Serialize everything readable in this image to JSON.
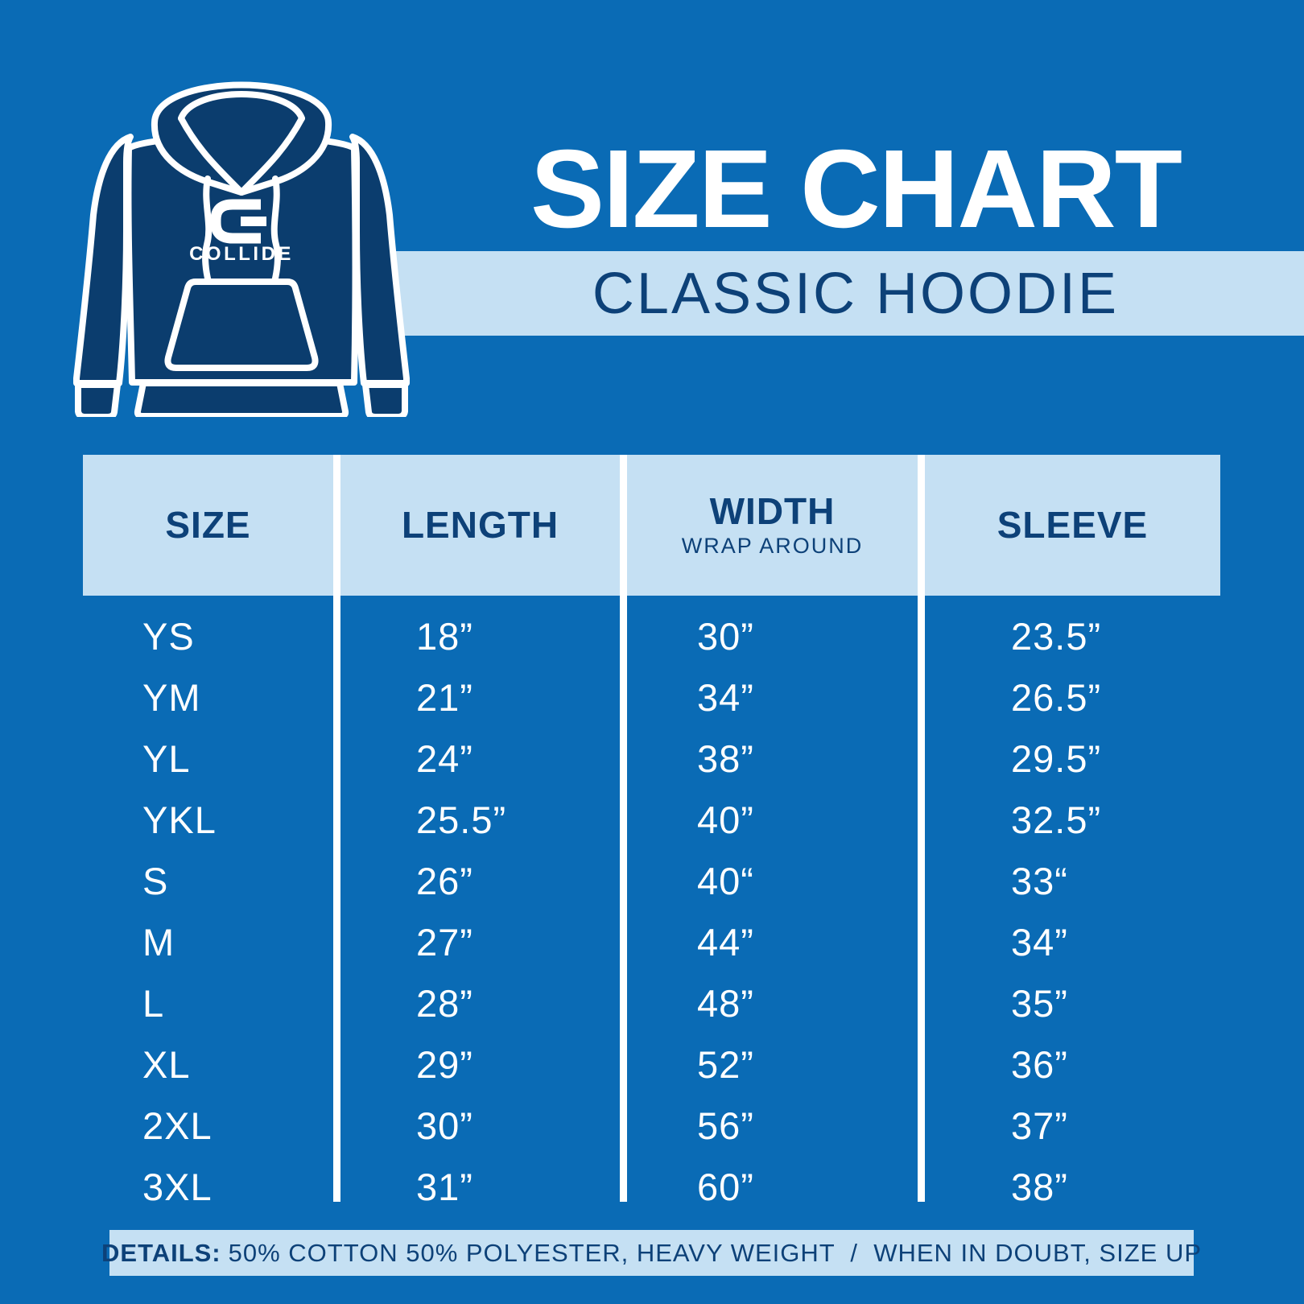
{
  "colors": {
    "background": "#0a6bb5",
    "light_band": "#c5e0f3",
    "navy": "#0d4178",
    "hoodie_fill": "#0b3d6e",
    "white": "#ffffff"
  },
  "brand": {
    "logo_icon": "collide-c-icon",
    "logo_text": "COLLIDE"
  },
  "header": {
    "title": "SIZE CHART",
    "subtitle": "CLASSIC HOODIE"
  },
  "chart_data": {
    "type": "table",
    "title": "SIZE CHART",
    "subtitle": "CLASSIC HOODIE",
    "columns": [
      {
        "label": "SIZE",
        "sublabel": ""
      },
      {
        "label": "LENGTH",
        "sublabel": ""
      },
      {
        "label": "WIDTH",
        "sublabel": "WRAP AROUND"
      },
      {
        "label": "SLEEVE",
        "sublabel": ""
      }
    ],
    "rows": [
      [
        "YS",
        "18”",
        "30”",
        "23.5”"
      ],
      [
        "YM",
        "21”",
        "34”",
        "26.5”"
      ],
      [
        "YL",
        "24”",
        "38”",
        "29.5”"
      ],
      [
        "YKL",
        "25.5”",
        "40”",
        "32.5”"
      ],
      [
        "S",
        "26”",
        "40“",
        "33“"
      ],
      [
        "M",
        "27”",
        "44”",
        "34”"
      ],
      [
        "L",
        "28”",
        "48”",
        "35”"
      ],
      [
        "XL",
        "29”",
        "52”",
        "36”"
      ],
      [
        "2XL",
        "30”",
        "56”",
        "37”"
      ],
      [
        "3XL",
        "31”",
        "60”",
        "38”"
      ]
    ]
  },
  "footer": {
    "details_label": "DETAILS:",
    "details_text": "50% COTTON 50% POLYESTER, HEAVY WEIGHT  /  WHEN IN DOUBT, SIZE UP"
  }
}
